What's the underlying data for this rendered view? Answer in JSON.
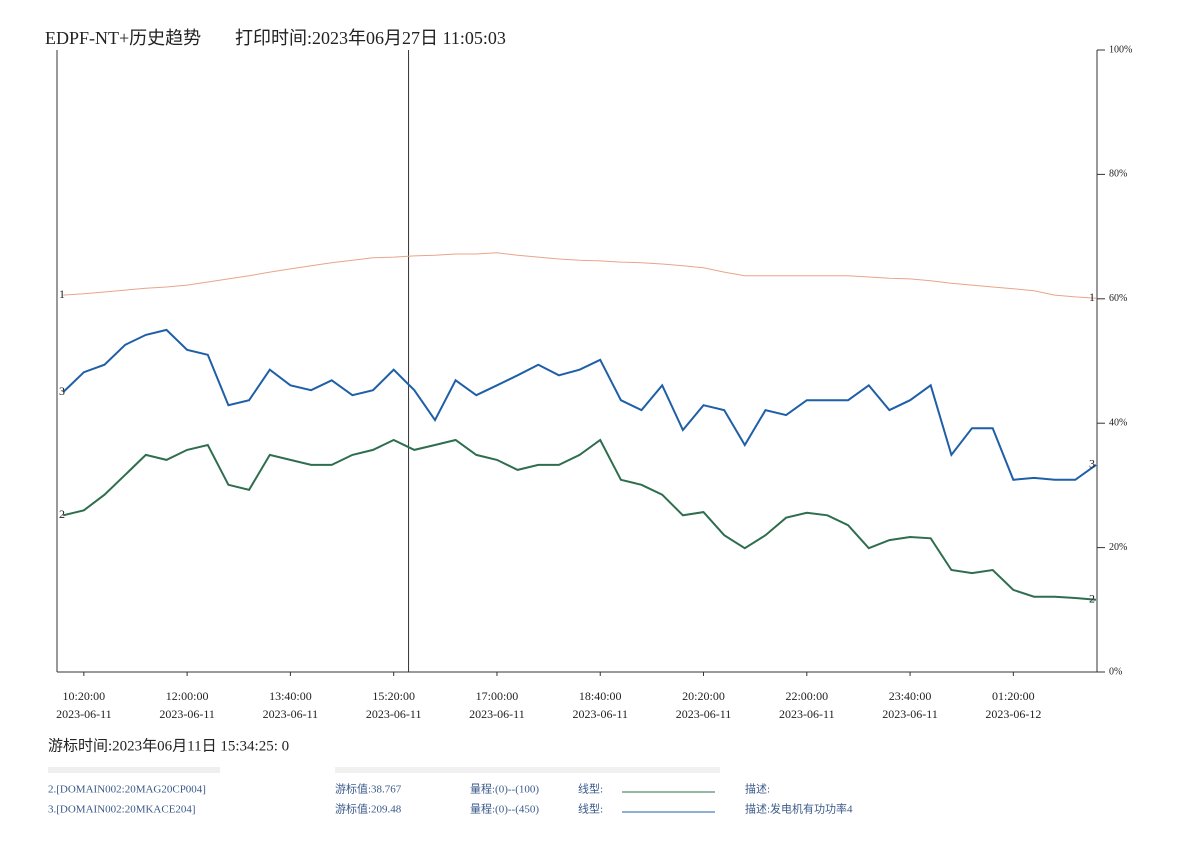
{
  "chart_data": {
    "type": "line",
    "title": "EDPF-NT+历史趋势",
    "print_time": "打印时间:2023年06月27日  11:05:03",
    "xlim": [
      594,
      1601
    ],
    "xticks": [
      {
        "value": 620,
        "label": "10:20:00",
        "date": "2023-06-11"
      },
      {
        "value": 720,
        "label": "12:00:00",
        "date": "2023-06-11"
      },
      {
        "value": 820,
        "label": "13:40:00",
        "date": "2023-06-11"
      },
      {
        "value": 920,
        "label": "15:20:00",
        "date": "2023-06-11"
      },
      {
        "value": 1020,
        "label": "17:00:00",
        "date": "2023-06-11"
      },
      {
        "value": 1120,
        "label": "18:40:00",
        "date": "2023-06-11"
      },
      {
        "value": 1220,
        "label": "20:20:00",
        "date": "2023-06-11"
      },
      {
        "value": 1320,
        "label": "22:00:00",
        "date": "2023-06-11"
      },
      {
        "value": 1420,
        "label": "23:40:00",
        "date": "2023-06-11"
      },
      {
        "value": 1520,
        "label": "01:20:00",
        "date": "2023-06-12"
      }
    ],
    "ylim": [
      0,
      100
    ],
    "yticks": [
      {
        "value": 0,
        "label": "0%"
      },
      {
        "value": 20,
        "label": "20%"
      },
      {
        "value": 40,
        "label": "40%"
      },
      {
        "value": 60,
        "label": "60%"
      },
      {
        "value": 80,
        "label": "80%"
      },
      {
        "value": 100,
        "label": "100%"
      }
    ],
    "cursor": {
      "x": 934.4,
      "label": "游标时间:2023年06月11日 15:34:25: 0"
    },
    "x": [
      600,
      620,
      640,
      660,
      680,
      700,
      720,
      740,
      760,
      780,
      800,
      820,
      840,
      860,
      880,
      900,
      920,
      940,
      960,
      980,
      1000,
      1020,
      1040,
      1060,
      1080,
      1100,
      1120,
      1140,
      1160,
      1180,
      1200,
      1220,
      1240,
      1260,
      1280,
      1300,
      1320,
      1340,
      1360,
      1380,
      1400,
      1420,
      1440,
      1460,
      1480,
      1500,
      1520,
      1540,
      1560,
      1580,
      1600
    ],
    "series": [
      {
        "label": "1",
        "color": "#e8a58a",
        "width": 1,
        "values": [
          60.6,
          60.8,
          61.1,
          61.4,
          61.7,
          61.9,
          62.2,
          62.7,
          63.2,
          63.7,
          64.3,
          64.8,
          65.3,
          65.8,
          66.2,
          66.6,
          66.7,
          66.9,
          67.0,
          67.2,
          67.2,
          67.4,
          67.0,
          66.7,
          66.4,
          66.2,
          66.1,
          65.9,
          65.8,
          65.6,
          65.3,
          65.0,
          64.3,
          63.7,
          63.7,
          63.7,
          63.7,
          63.7,
          63.7,
          63.5,
          63.3,
          63.2,
          62.9,
          62.5,
          62.2,
          61.9,
          61.6,
          61.3,
          60.6,
          60.3,
          60.1
        ]
      },
      {
        "label": "2",
        "color": "#2e6e4e",
        "width": 2,
        "name": "2.[DOMAIN002:20MAG20CP004]",
        "cursor_value": "游标值:38.767",
        "range": "量程:(0)--(100)",
        "linetype": "线型:",
        "desc": "描述:",
        "values": [
          25.2,
          26.0,
          28.5,
          31.7,
          34.9,
          34.1,
          35.7,
          36.5,
          30.1,
          29.3,
          34.9,
          34.1,
          33.3,
          33.3,
          34.9,
          35.7,
          37.3,
          35.7,
          36.5,
          37.3,
          34.9,
          34.1,
          32.5,
          33.3,
          33.3,
          34.9,
          37.3,
          30.9,
          30.1,
          28.5,
          25.2,
          25.7,
          22.0,
          19.9,
          22.0,
          24.8,
          25.6,
          25.2,
          23.6,
          19.9,
          21.2,
          21.7,
          21.5,
          16.4,
          15.9,
          16.4,
          13.2,
          12.1,
          12.1,
          11.9,
          11.6
        ]
      },
      {
        "label": "3",
        "color": "#1f5fa8",
        "width": 2,
        "name": "3.[DOMAIN002:20MKACE204]",
        "cursor_value": "游标值:209.48",
        "range": "量程:(0)--(450)",
        "linetype": "线型:",
        "desc": "描述:发电机有功功率4",
        "values": [
          45.0,
          48.2,
          49.4,
          52.6,
          54.2,
          55.0,
          51.8,
          51.0,
          42.9,
          43.7,
          48.6,
          46.1,
          45.3,
          46.9,
          44.5,
          45.3,
          48.6,
          45.3,
          40.5,
          46.9,
          44.5,
          46.1,
          47.7,
          49.4,
          47.7,
          48.6,
          50.2,
          43.7,
          42.1,
          46.1,
          38.9,
          42.9,
          42.1,
          36.5,
          42.1,
          41.3,
          43.7,
          43.7,
          43.7,
          46.1,
          42.1,
          43.7,
          46.1,
          34.9,
          39.2,
          39.2,
          30.9,
          31.2,
          30.9,
          30.9,
          33.3
        ]
      }
    ]
  }
}
